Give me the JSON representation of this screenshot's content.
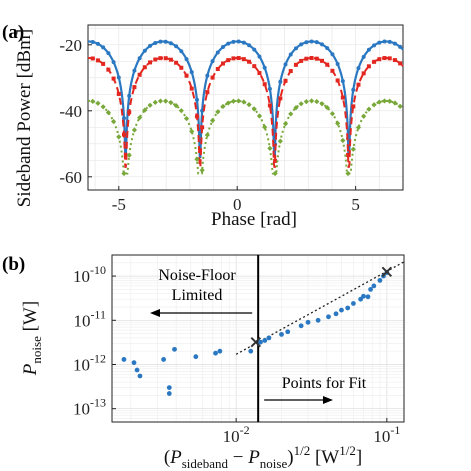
{
  "chart_data": [
    {
      "panel_label": "(a)",
      "type": "line",
      "xlabel": "Phase [rad]",
      "ylabel": "Sideband Power [dBm]",
      "xlim": [
        -6.3,
        7.0
      ],
      "ylim": [
        -64,
        -14
      ],
      "xticks": [
        -5,
        0,
        5
      ],
      "yticks": [
        -60,
        -40,
        -20
      ],
      "series": [
        {
          "color": "#2a78c2",
          "style": "solid",
          "markers": "dots",
          "max": -19,
          "min": -54,
          "period": 3.14159,
          "peak_at": -3.14
        },
        {
          "color": "#e3261f",
          "style": "dashed",
          "markers": "squares",
          "max": -24,
          "min": -57,
          "period": 3.14159,
          "peak_at": -3.14
        },
        {
          "color": "#78a83a",
          "style": "dotted",
          "markers": "diamonds",
          "max": -37,
          "min": -59,
          "period": 3.14159,
          "peak_at": -3.14
        }
      ]
    },
    {
      "panel_label": "(b)",
      "type": "scatter",
      "xscale": "log",
      "yscale": "log",
      "xlim": [
        0.0015,
        0.13
      ],
      "ylim": [
        5e-14,
        3e-10
      ],
      "xticks": [
        {
          "value": 0.01,
          "base": "10",
          "exp": "-2"
        },
        {
          "value": 0.1,
          "base": "10",
          "exp": "-1"
        }
      ],
      "yticks": [
        {
          "value": 1e-13,
          "base": "10",
          "exp": "-13"
        },
        {
          "value": 1e-12,
          "base": "10",
          "exp": "-12"
        },
        {
          "value": 1e-11,
          "base": "10",
          "exp": "-11"
        },
        {
          "value": 1e-10,
          "base": "10",
          "exp": "-10"
        }
      ],
      "xlabel": {
        "open": "(",
        "p1": "P",
        "s1": "sideband",
        "mid": " − ",
        "p2": "P",
        "s2": "noise",
        "close": ")",
        "sup": "1/2",
        "unit_open": " [W",
        "unit_sup": "1/2",
        "unit_close": "]"
      },
      "ylabel": {
        "p": "P",
        "sub": "noise",
        "unit": " [W]"
      },
      "threshold_x": 0.014,
      "annotations": {
        "left_line1": "Noise-Floor",
        "left_line2": "Limited",
        "right": "Points for Fit"
      },
      "points": [
        [
          0.0018,
          1.3e-12
        ],
        [
          0.0021,
          1.1e-12
        ],
        [
          0.0022,
          7.5e-13
        ],
        [
          0.0023,
          5.5e-13
        ],
        [
          0.0033,
          1.3e-12
        ],
        [
          0.0036,
          3e-13
        ],
        [
          0.0036,
          2.2e-13
        ],
        [
          0.0039,
          2.2e-12
        ],
        [
          0.0054,
          1.5e-12
        ],
        [
          0.0073,
          1.8e-12
        ],
        [
          0.0078,
          2e-12
        ],
        [
          0.0125,
          2e-12
        ],
        [
          0.0145,
          3.2e-12
        ],
        [
          0.0155,
          3.5e-12
        ],
        [
          0.0165,
          4e-12
        ],
        [
          0.02,
          4.8e-12
        ],
        [
          0.022,
          5.5e-12
        ],
        [
          0.027,
          7.5e-12
        ],
        [
          0.03,
          9e-12
        ],
        [
          0.035,
          1e-11
        ],
        [
          0.041,
          1.2e-11
        ],
        [
          0.046,
          1.4e-11
        ],
        [
          0.05,
          1.7e-11
        ],
        [
          0.055,
          1.9e-11
        ],
        [
          0.06,
          2.4e-11
        ],
        [
          0.067,
          3e-11
        ],
        [
          0.07,
          3.5e-11
        ],
        [
          0.075,
          3.4e-11
        ],
        [
          0.078,
          5e-11
        ],
        [
          0.082,
          6e-11
        ],
        [
          0.09,
          8e-11
        ],
        [
          0.095,
          1e-10
        ],
        [
          0.1,
          1.2e-10
        ]
      ],
      "cross_points": [
        [
          0.0135,
          3.2e-12
        ],
        [
          0.1,
          1.25e-10
        ]
      ],
      "fit_line": [
        [
          0.01,
          1.7e-12
        ],
        [
          0.13,
          2.1e-10
        ]
      ]
    }
  ]
}
